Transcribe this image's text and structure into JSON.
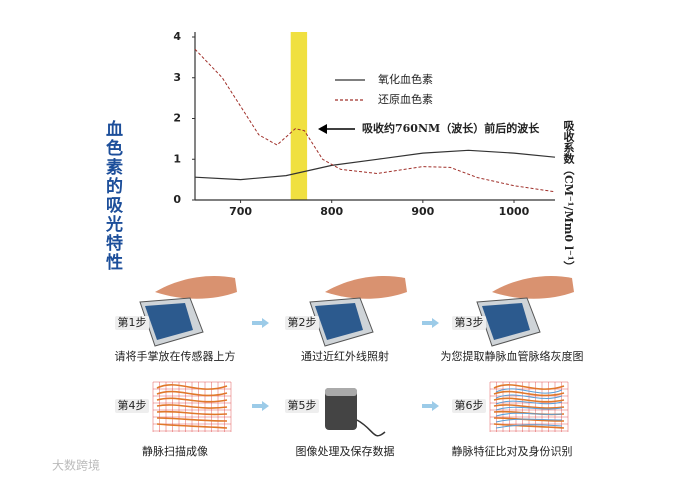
{
  "chart_data": {
    "type": "line",
    "title": "血色素的吸光特性",
    "y_label": "吸收系数（CM⁻¹/Mm0 l⁻¹）",
    "annotation": "吸收约760NM（波长）前后的波长",
    "highlight": [
      755,
      773
    ],
    "highlight_color": "#f0e040",
    "xlim": [
      650,
      1045
    ],
    "xticks": [
      700,
      800,
      900,
      1000
    ],
    "ylim": [
      0,
      4
    ],
    "yticks": [
      0,
      1,
      2,
      3,
      4
    ],
    "series": [
      {
        "name": "氧化血色素",
        "color": "#333333",
        "dash": false,
        "x": [
          650,
          700,
          750,
          800,
          850,
          900,
          950,
          1000,
          1045
        ],
        "values": [
          0.56,
          0.5,
          0.6,
          0.85,
          1.0,
          1.15,
          1.22,
          1.15,
          1.05
        ]
      },
      {
        "name": "还原血色素",
        "color": "#a0302a",
        "dash": true,
        "x": [
          650,
          680,
          700,
          720,
          740,
          760,
          770,
          790,
          810,
          850,
          900,
          930,
          960,
          1000,
          1045
        ],
        "values": [
          3.7,
          3.0,
          2.3,
          1.6,
          1.35,
          1.75,
          1.7,
          1.0,
          0.75,
          0.65,
          0.82,
          0.8,
          0.55,
          0.35,
          0.2
        ]
      }
    ]
  },
  "steps": [
    {
      "label": "第1步",
      "caption": "请将手掌放在传感器上方"
    },
    {
      "label": "第2步",
      "caption": "通过近红外线照射"
    },
    {
      "label": "第3步",
      "caption": "为您提取静脉血管脉络灰度图"
    },
    {
      "label": "第4步",
      "caption": "静脉扫描成像"
    },
    {
      "label": "第5步",
      "caption": "图像处理及保存数据"
    },
    {
      "label": "第6步",
      "caption": "静脉特征比对及身份识别"
    }
  ],
  "watermark": "大数跨境"
}
